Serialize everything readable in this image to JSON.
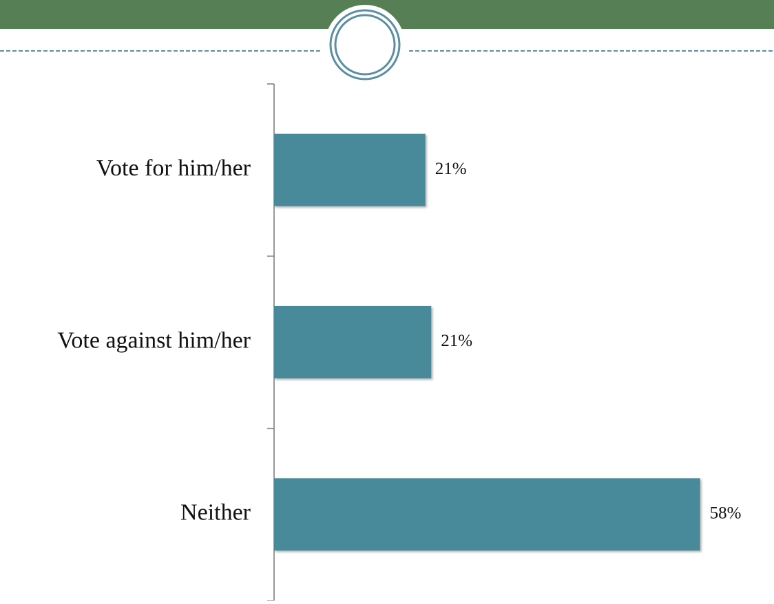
{
  "chart_data": {
    "type": "bar",
    "orientation": "horizontal",
    "categories": [
      "Vote for him/her",
      "Vote against him/her",
      "Neither"
    ],
    "values": [
      20.6,
      21.4,
      58
    ],
    "value_labels": [
      "21%",
      "21%",
      "58%"
    ],
    "color": "#488a9a",
    "xlim": [
      0,
      60
    ]
  }
}
